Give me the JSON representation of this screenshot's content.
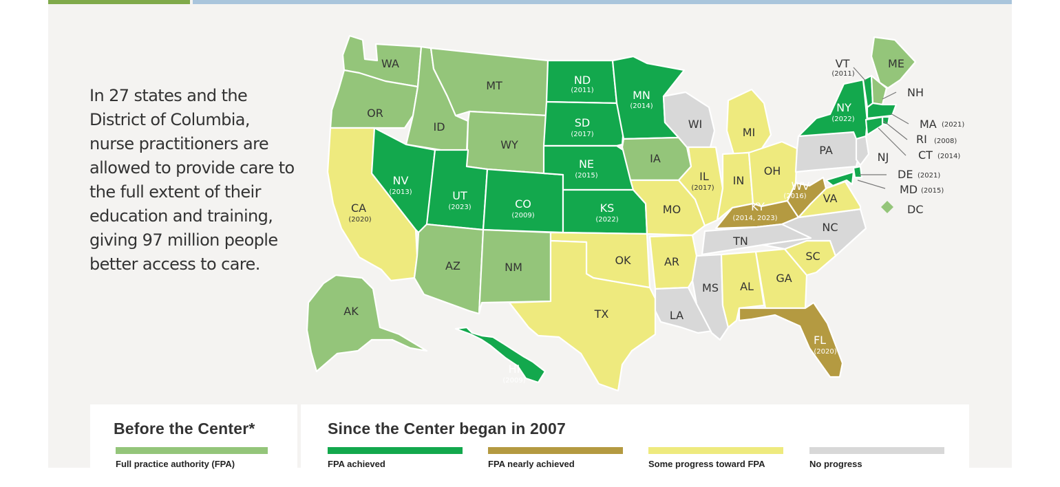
{
  "intro_text": "In 27 states and the District of Columbia, nurse practitioners are allowed to provide care to the full extent of their education and training, giving 97 million people better access to care.",
  "colors": {
    "fpa_before": "#94c57a",
    "fpa_achieved": "#13a84d",
    "fpa_nearly": "#b49a41",
    "some_progress": "#eeea7e",
    "no_progress": "#d8d8d8"
  },
  "map": {
    "states": [
      {
        "abbr": "WA",
        "year": "",
        "status": "fpa_before"
      },
      {
        "abbr": "OR",
        "year": "",
        "status": "fpa_before"
      },
      {
        "abbr": "CA",
        "year": "(2020)",
        "status": "some_progress"
      },
      {
        "abbr": "ID",
        "year": "",
        "status": "fpa_before"
      },
      {
        "abbr": "NV",
        "year": "(2013)",
        "status": "fpa_achieved"
      },
      {
        "abbr": "MT",
        "year": "",
        "status": "fpa_before"
      },
      {
        "abbr": "WY",
        "year": "",
        "status": "fpa_before"
      },
      {
        "abbr": "UT",
        "year": "(2023)",
        "status": "fpa_achieved"
      },
      {
        "abbr": "CO",
        "year": "(2009)",
        "status": "fpa_achieved"
      },
      {
        "abbr": "AZ",
        "year": "",
        "status": "fpa_before"
      },
      {
        "abbr": "NM",
        "year": "",
        "status": "fpa_before"
      },
      {
        "abbr": "ND",
        "year": "(2011)",
        "status": "fpa_achieved"
      },
      {
        "abbr": "SD",
        "year": "(2017)",
        "status": "fpa_achieved"
      },
      {
        "abbr": "NE",
        "year": "(2015)",
        "status": "fpa_achieved"
      },
      {
        "abbr": "KS",
        "year": "(2022)",
        "status": "fpa_achieved"
      },
      {
        "abbr": "OK",
        "year": "",
        "status": "some_progress"
      },
      {
        "abbr": "TX",
        "year": "",
        "status": "some_progress"
      },
      {
        "abbr": "MN",
        "year": "(2014)",
        "status": "fpa_achieved"
      },
      {
        "abbr": "IA",
        "year": "",
        "status": "fpa_before"
      },
      {
        "abbr": "MO",
        "year": "",
        "status": "some_progress"
      },
      {
        "abbr": "AR",
        "year": "",
        "status": "some_progress"
      },
      {
        "abbr": "LA",
        "year": "",
        "status": "no_progress"
      },
      {
        "abbr": "WI",
        "year": "",
        "status": "no_progress"
      },
      {
        "abbr": "IL",
        "year": "(2017)",
        "status": "some_progress"
      },
      {
        "abbr": "MI",
        "year": "",
        "status": "some_progress"
      },
      {
        "abbr": "IN",
        "year": "",
        "status": "some_progress"
      },
      {
        "abbr": "OH",
        "year": "",
        "status": "some_progress"
      },
      {
        "abbr": "KY",
        "year": "(2014, 2023)",
        "status": "fpa_nearly"
      },
      {
        "abbr": "TN",
        "year": "",
        "status": "no_progress"
      },
      {
        "abbr": "MS",
        "year": "",
        "status": "no_progress"
      },
      {
        "abbr": "AL",
        "year": "",
        "status": "some_progress"
      },
      {
        "abbr": "GA",
        "year": "",
        "status": "some_progress"
      },
      {
        "abbr": "FL",
        "year": "(2020)",
        "status": "fpa_nearly"
      },
      {
        "abbr": "SC",
        "year": "",
        "status": "some_progress"
      },
      {
        "abbr": "NC",
        "year": "",
        "status": "no_progress"
      },
      {
        "abbr": "VA",
        "year": "",
        "status": "some_progress"
      },
      {
        "abbr": "WV",
        "year": "(2016)",
        "status": "fpa_nearly"
      },
      {
        "abbr": "PA",
        "year": "",
        "status": "no_progress"
      },
      {
        "abbr": "NY",
        "year": "(2022)",
        "status": "fpa_achieved"
      },
      {
        "abbr": "ME",
        "year": "",
        "status": "fpa_before"
      },
      {
        "abbr": "AK",
        "year": "",
        "status": "fpa_before"
      },
      {
        "abbr": "HI",
        "year": "(2009)",
        "status": "fpa_achieved"
      },
      {
        "abbr": "VT",
        "year": "(2011)",
        "status": "fpa_achieved"
      },
      {
        "abbr": "NH",
        "year": "",
        "status": "fpa_before"
      },
      {
        "abbr": "MA",
        "year": "(2021)",
        "status": "fpa_achieved"
      },
      {
        "abbr": "RI",
        "year": "(2008)",
        "status": "fpa_achieved"
      },
      {
        "abbr": "CT",
        "year": "(2014)",
        "status": "fpa_achieved"
      },
      {
        "abbr": "NJ",
        "year": "",
        "status": "no_progress"
      },
      {
        "abbr": "DE",
        "year": "(2021)",
        "status": "fpa_achieved"
      },
      {
        "abbr": "MD",
        "year": "(2015)",
        "status": "fpa_achieved"
      },
      {
        "abbr": "DC",
        "year": "",
        "status": "fpa_before"
      }
    ]
  },
  "legend": {
    "before_title": "Before the Center*",
    "since_title": "Since the Center began in 2007",
    "items": [
      {
        "label": "Full practice authority (FPA)",
        "status": "fpa_before"
      },
      {
        "label": "FPA achieved",
        "status": "fpa_achieved"
      },
      {
        "label": "FPA nearly achieved",
        "status": "fpa_nearly"
      },
      {
        "label": "Some progress toward FPA",
        "status": "some_progress"
      },
      {
        "label": "No progress",
        "status": "no_progress"
      }
    ]
  }
}
